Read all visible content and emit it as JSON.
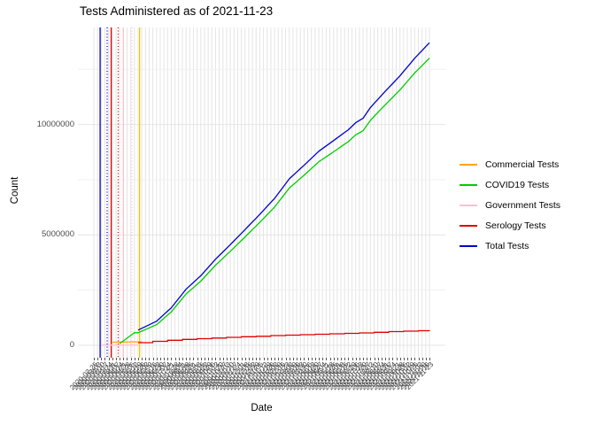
{
  "chart_data": {
    "type": "line",
    "title": "Tests Administered as of 2021-11-23",
    "xlabel": "Date",
    "ylabel": "Count",
    "grid": "on",
    "legend_position": "right",
    "ylim": [
      0,
      14300000
    ],
    "y_ticks": {
      "values": [
        0,
        5000000,
        10000000
      ],
      "labels": [
        "0",
        "5000000",
        "10000000"
      ]
    },
    "y_minor": [
      2500000,
      7500000,
      12500000
    ],
    "x_unit": "weekly dates",
    "x_dates": [
      "2020-02-25",
      "2020-03-03",
      "2020-03-10",
      "2020-03-17",
      "2020-03-24",
      "2020-03-31",
      "2020-04-07",
      "2020-04-14",
      "2020-04-21",
      "2020-04-28",
      "2020-05-05",
      "2020-05-12",
      "2020-05-19",
      "2020-05-26",
      "2020-06-02",
      "2020-06-09",
      "2020-06-16",
      "2020-06-23",
      "2020-06-30",
      "2020-07-07",
      "2020-07-14",
      "2020-07-21",
      "2020-07-28",
      "2020-08-04",
      "2020-08-11",
      "2020-08-18",
      "2020-08-25",
      "2020-09-01",
      "2020-09-08",
      "2020-09-15",
      "2020-09-22",
      "2020-09-29",
      "2020-10-06",
      "2020-10-13",
      "2020-10-20",
      "2020-10-27",
      "2020-11-03",
      "2020-11-10",
      "2020-11-17",
      "2020-11-24",
      "2020-12-01",
      "2020-12-08",
      "2020-12-15",
      "2020-12-22",
      "2020-12-29",
      "2021-01-05",
      "2021-01-12",
      "2021-01-19",
      "2021-01-26",
      "2021-02-02",
      "2021-02-09",
      "2021-02-16",
      "2021-02-23",
      "2021-03-02",
      "2021-03-09",
      "2021-03-16",
      "2021-03-23",
      "2021-03-30",
      "2021-04-06",
      "2021-04-13",
      "2021-04-20",
      "2021-04-27",
      "2021-05-04",
      "2021-05-11",
      "2021-05-18",
      "2021-05-25",
      "2021-06-01",
      "2021-06-08",
      "2021-06-15",
      "2021-06-22",
      "2021-06-29",
      "2021-07-06",
      "2021-07-13",
      "2021-07-20",
      "2021-07-27",
      "2021-08-03",
      "2021-08-10",
      "2021-08-17",
      "2021-08-24",
      "2021-08-31",
      "2021-09-07",
      "2021-09-14",
      "2021-09-21",
      "2021-09-28",
      "2021-10-05",
      "2021-10-12",
      "2021-10-19",
      "2021-10-26",
      "2021-11-02",
      "2021-11-09",
      "2021-11-16",
      "2021-11-23"
    ],
    "series": [
      {
        "name": "Commercial Tests",
        "color": "#ffa500",
        "draw": "linear",
        "points": [
          [
            5,
            140000
          ],
          [
            13,
            160000
          ]
        ]
      },
      {
        "name": "COVID19 Tests",
        "color": "#00cd00",
        "draw": "linear",
        "start_week": 7,
        "weekly_values": [
          80000,
          202000,
          324000,
          446000,
          568000,
          570000,
          643000,
          715000,
          788000,
          861000,
          934000,
          1079000,
          1224000,
          1370000,
          1514000,
          1717000,
          1920000,
          2122000,
          2325000,
          2471000,
          2616000,
          2761000,
          2906000,
          3087000,
          3266000,
          3447000,
          3627000,
          3784000,
          3942000,
          4100000,
          4258000,
          4420000,
          4583000,
          4746000,
          4908000,
          5074000,
          5239000,
          5404000,
          5569000,
          5742000,
          5915000,
          6087000,
          6260000,
          6476000,
          6690000,
          6906000,
          7121000,
          7266000,
          7411000,
          7557000,
          7702000,
          7854000,
          8007000,
          8160000,
          8312000,
          8425000,
          8538000,
          8650000,
          8763000,
          8879000,
          8994000,
          9109000,
          9224000,
          9377000,
          9529000,
          9622000,
          9715000,
          9952000,
          10190000,
          10366000,
          10541000,
          10716000,
          10891000,
          11059000,
          11226000,
          11394000,
          11562000,
          11754000,
          11947000,
          12140000,
          12333000,
          12500000,
          12668000,
          12836000,
          13003000
        ]
      },
      {
        "name": "Government Tests",
        "color": "#ffc0cb",
        "draw": "linear",
        "points": [
          [
            2,
            8000
          ],
          [
            12,
            8000
          ]
        ]
      },
      {
        "name": "Serology Tests",
        "color": "#e00000",
        "draw": "step",
        "points": [
          [
            12,
            120000
          ],
          [
            16,
            180000
          ],
          [
            20,
            230000
          ],
          [
            24,
            270000
          ],
          [
            28,
            300000
          ],
          [
            32,
            330000
          ],
          [
            36,
            360000
          ],
          [
            40,
            390000
          ],
          [
            44,
            410000
          ],
          [
            48,
            440000
          ],
          [
            52,
            460000
          ],
          [
            56,
            480000
          ],
          [
            60,
            500000
          ],
          [
            64,
            520000
          ],
          [
            68,
            540000
          ],
          [
            72,
            560000
          ],
          [
            76,
            590000
          ],
          [
            80,
            620000
          ],
          [
            84,
            640000
          ],
          [
            88,
            660000
          ],
          [
            91,
            685000
          ]
        ]
      },
      {
        "name": "Total Tests",
        "color": "#0000cd",
        "draw": "linear",
        "start_week": 12,
        "weekly_values": [
          690000,
          770000,
          850000,
          930000,
          1010000,
          1090000,
          1243000,
          1395000,
          1548000,
          1700000,
          1910000,
          2120000,
          2330000,
          2540000,
          2693000,
          2845000,
          2998000,
          3150000,
          3338000,
          3525000,
          3713000,
          3900000,
          4065000,
          4230000,
          4395000,
          4560000,
          4730000,
          4900000,
          5070000,
          5240000,
          5413000,
          5585000,
          5758000,
          5930000,
          6110000,
          6290000,
          6470000,
          6650000,
          6873000,
          7095000,
          7318000,
          7540000,
          7693000,
          7845000,
          7998000,
          8150000,
          8310000,
          8470000,
          8630000,
          8790000,
          8910000,
          9030000,
          9150000,
          9270000,
          9393000,
          9515000,
          9638000,
          9760000,
          9920000,
          10080000,
          10180000,
          10280000,
          10525000,
          10770000,
          10953000,
          11135000,
          11318000,
          11500000,
          11675000,
          11850000,
          12025000,
          12200000,
          12400000,
          12600000,
          12800000,
          13000000,
          13175000,
          13350000,
          13525000,
          13700000
        ]
      }
    ],
    "vlines": [
      {
        "color": "#0000cd",
        "style": "solid",
        "week": 1.7
      },
      {
        "color": "#0000cd",
        "style": "dotted",
        "week": 3.6
      },
      {
        "color": "#e00000",
        "style": "solid",
        "week": 4.7
      },
      {
        "color": "#e00000",
        "style": "dotted",
        "week": 6.6
      },
      {
        "color": "#ffc0cb",
        "style": "solid",
        "week": 8.0
      },
      {
        "color": "#ffc0cb",
        "style": "dotted",
        "week": 10.3
      },
      {
        "color": "#eec900",
        "style": "solid",
        "week": 12.4
      }
    ],
    "style_colors": {
      "grid_major": "#e4e4e4",
      "grid_minor": "#f0f0f0",
      "axis_text": "#4d4d4d",
      "background": "#ffffff"
    }
  }
}
